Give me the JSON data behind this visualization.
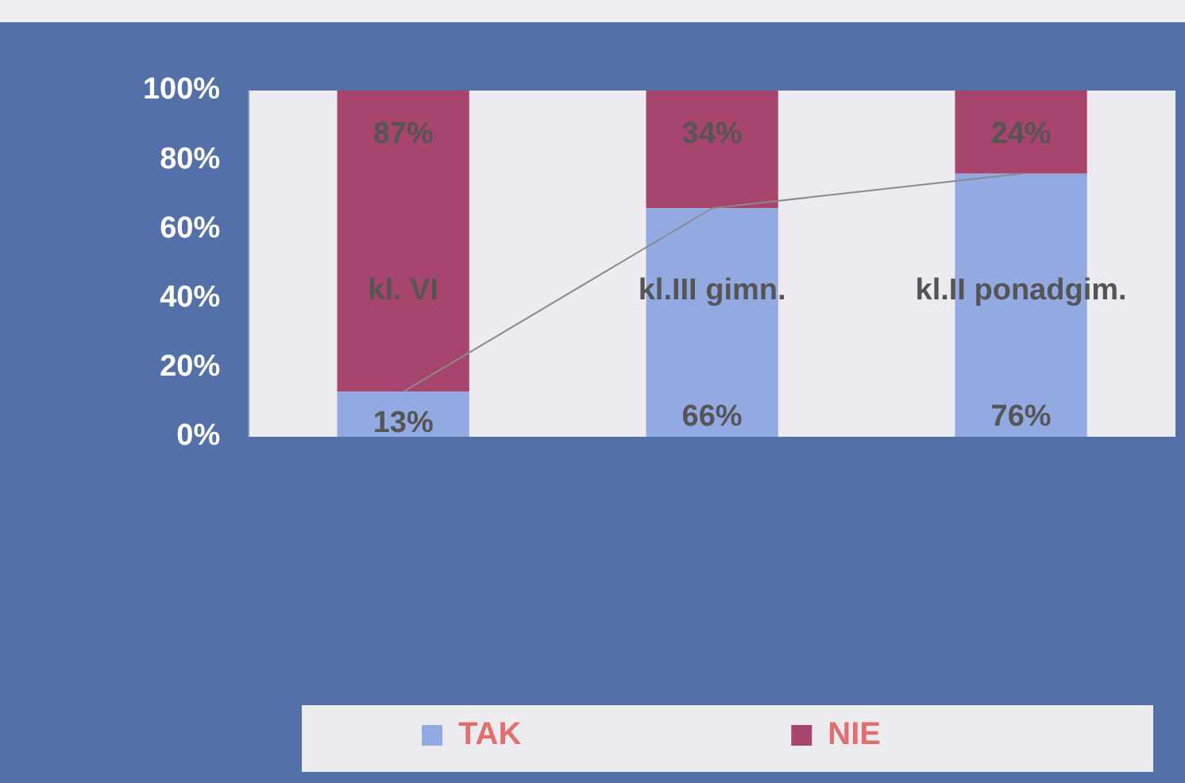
{
  "chart_data": {
    "type": "bar",
    "stacked": true,
    "categories": [
      "kl. VI",
      "kl.III gimn.",
      "kl.II ponadgim."
    ],
    "series": [
      {
        "name": "TAK",
        "color": "#93a9e2",
        "values": [
          13,
          66,
          76
        ],
        "value_labels": [
          "13%",
          "66%",
          "76%"
        ]
      },
      {
        "name": "NIE",
        "color": "#a8456f",
        "values": [
          87,
          34,
          24
        ],
        "value_labels": [
          "87%",
          "34%",
          "24%"
        ]
      },
      {
        "type": "line",
        "color": "#8a8a8a",
        "values": [
          13,
          66,
          76
        ]
      }
    ],
    "ylim": [
      0,
      100
    ],
    "yticks": [
      {
        "value": 0,
        "label": "0%"
      },
      {
        "value": 20,
        "label": "20%"
      },
      {
        "value": 40,
        "label": "40%"
      },
      {
        "value": 60,
        "label": "60%"
      },
      {
        "value": 80,
        "label": "80%"
      },
      {
        "value": 100,
        "label": "100%"
      }
    ],
    "grid": false,
    "legend": "bottom",
    "tick_labels": "y"
  }
}
